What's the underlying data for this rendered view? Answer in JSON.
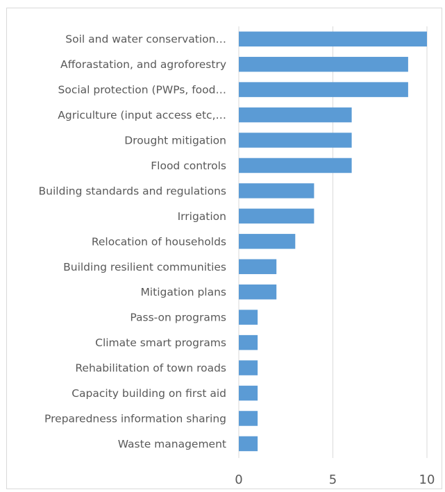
{
  "chart_data": {
    "type": "bar",
    "orientation": "horizontal",
    "categories": [
      "Soil and water conservation…",
      "Afforastation, and agroforestry",
      "Social protection (PWPs, food…",
      "Agriculture (input access etc,…",
      "Drought mitigation",
      "Flood controls",
      "Building standards and regulations",
      "Irrigation",
      "Relocation of households",
      "Building resilient communities",
      "Mitigation plans",
      "Pass-on programs",
      "Climate smart programs",
      "Rehabilitation of town roads",
      "Capacity building on first aid",
      "Preparedness information sharing",
      "Waste management"
    ],
    "values": [
      10,
      9,
      9,
      6,
      6,
      6,
      4,
      4,
      3,
      2,
      2,
      1,
      1,
      1,
      1,
      1,
      1
    ],
    "xlim": [
      0,
      10
    ],
    "xticks": [
      "0",
      "5",
      "10"
    ],
    "grid": "vertical",
    "legend": "none",
    "bar_color": "#5b9bd5",
    "gridline_color": "#d9d9d9",
    "text_color": "#595959"
  }
}
